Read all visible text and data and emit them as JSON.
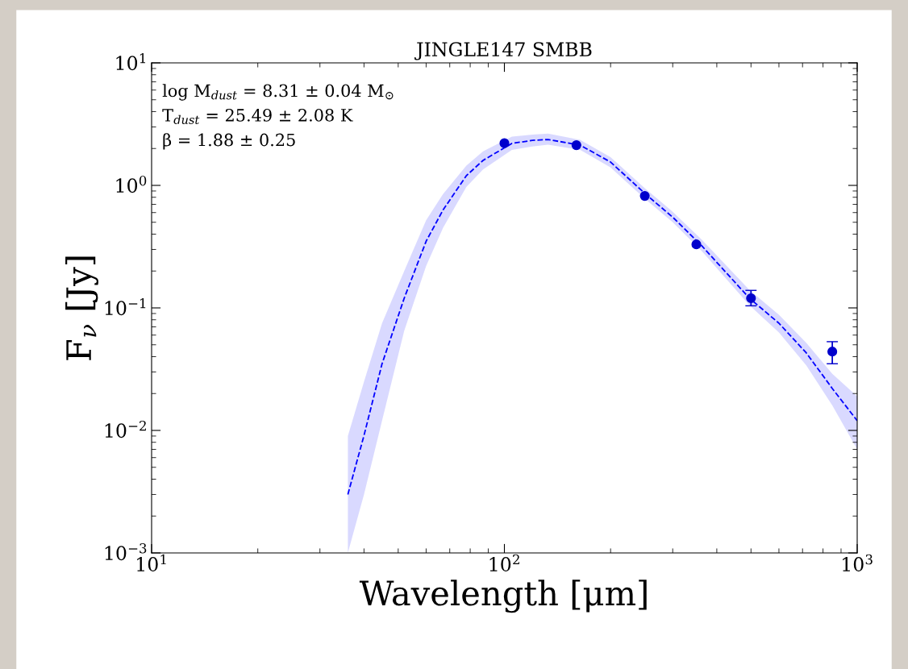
{
  "chart_data": {
    "type": "scatter",
    "title": "JINGLE147 SMBB",
    "xlabel": "Wavelength [μm]",
    "ylabel": "F$_{ν}$ [Jy]",
    "log": "xy",
    "grid": false,
    "xlim": [
      10,
      1000
    ],
    "ylim": [
      0.001,
      10
    ],
    "xticks": [
      {
        "value": 10,
        "label": "10$^{1}$"
      },
      {
        "value": 100,
        "label": "10$^{2}$"
      },
      {
        "value": 1000,
        "label": "10$^{3}$"
      }
    ],
    "yticks": [
      {
        "value": 0.001,
        "label": "10$^{−3}$"
      },
      {
        "value": 0.01,
        "label": "10$^{−2}$"
      },
      {
        "value": 0.1,
        "label": "10$^{−1}$"
      },
      {
        "value": 1,
        "label": "10$^{0}$"
      },
      {
        "value": 10,
        "label": "10$^{1}$"
      }
    ],
    "annotations": [
      "log M$_{dust}$ = 8.31 ± 0.04 M$_{⊙}$",
      "T$_{dust}$ = 25.49 ± 2.08 K",
      "β = 1.88 ± 0.25"
    ],
    "series": [
      {
        "type": "line",
        "color": "#0000ff",
        "line_style": "dashed",
        "marker": "none",
        "x": [
          36,
          40,
          45,
          52,
          60,
          67,
          78,
          87,
          105,
          120,
          133,
          164,
          200,
          250,
          300,
          363,
          495,
          600,
          717,
          850,
          1000
        ],
        "values": [
          0.003,
          0.0091,
          0.035,
          0.12,
          0.35,
          0.63,
          1.2,
          1.6,
          2.2,
          2.33,
          2.37,
          2.13,
          1.55,
          0.86,
          0.55,
          0.32,
          0.12,
          0.075,
          0.043,
          0.022,
          0.012
        ],
        "lower": [
          0.001,
          0.003,
          0.012,
          0.065,
          0.22,
          0.45,
          0.97,
          1.35,
          1.95,
          2.08,
          2.15,
          1.95,
          1.4,
          0.78,
          0.5,
          0.29,
          0.105,
          0.063,
          0.034,
          0.016,
          0.007
        ],
        "upper": [
          0.009,
          0.025,
          0.075,
          0.2,
          0.52,
          0.85,
          1.45,
          1.9,
          2.5,
          2.6,
          2.65,
          2.35,
          1.7,
          0.95,
          0.61,
          0.36,
          0.14,
          0.088,
          0.052,
          0.029,
          0.019
        ]
      },
      {
        "color": "#0000cc",
        "marker": "circle",
        "x": [
          100,
          160,
          250,
          350,
          500,
          850
        ],
        "values": [
          2.21,
          2.13,
          0.82,
          0.33,
          0.12,
          0.044
        ],
        "errors": [
          null,
          null,
          null,
          null,
          [
            0.104,
            0.139
          ],
          [
            0.035,
            0.053
          ]
        ]
      }
    ]
  }
}
